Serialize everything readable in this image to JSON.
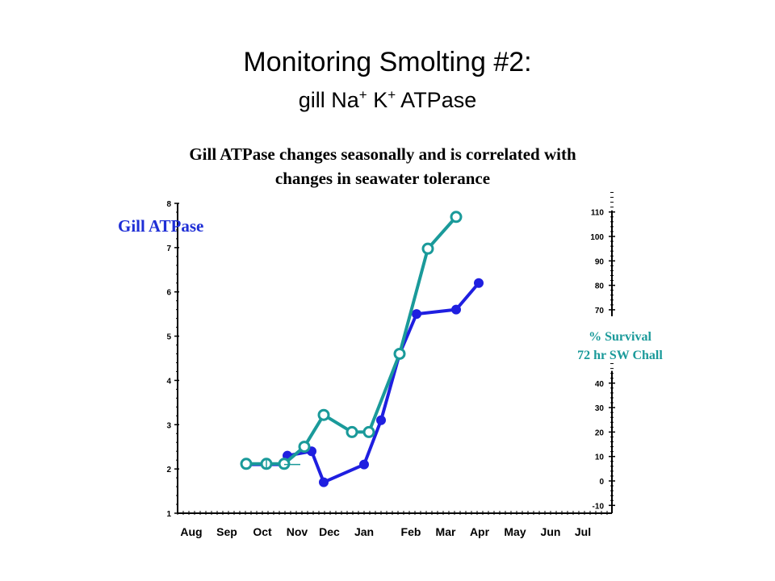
{
  "slide": {
    "title": "Monitoring Smolting #2:",
    "subtitle_prefix": "gill Na",
    "subtitle_sup1": "+",
    "subtitle_mid": " K",
    "subtitle_sup2": "+",
    "subtitle_suffix": " ATPase"
  },
  "chart_data": {
    "type": "line",
    "title": "Gill ATPase changes seasonally and is correlated with changes in seawater tolerance",
    "ylabel": "Gill ATPase",
    "y2label_line1": "% Survival",
    "y2label_line2": "72 hr SW Chall",
    "x_labels": [
      "Aug",
      "Sep",
      "Oct",
      "Nov",
      "Dec",
      "Jan",
      "Feb",
      "Mar",
      "Apr",
      "May",
      "Jun",
      "Jul"
    ],
    "ylim": [
      1,
      8
    ],
    "y_ticks": [
      1,
      2,
      3,
      4,
      5,
      6,
      7,
      8
    ],
    "y2_ticks_upper": [
      70,
      80,
      90,
      100,
      110
    ],
    "y2_ticks_lower": [
      -10,
      0,
      10,
      20,
      30,
      40
    ],
    "grid": false,
    "legend": "none",
    "colors": {
      "atpase": "#1f1fe0",
      "survival": "#1a9a9a",
      "left_label": "#1f2fd6"
    },
    "series": [
      {
        "key": "atpase",
        "axis": "left",
        "x": [
          "late Sep",
          "Oct",
          "mid Oct",
          "Nov",
          "mid Nov",
          "Dec",
          "Jan",
          "mid Jan",
          "late Jan",
          "early Feb",
          "Mar",
          "Apr"
        ],
        "values": [
          2.1,
          2.1,
          2.1,
          2.3,
          2.4,
          1.7,
          2.1,
          3.1,
          4.6,
          5.5,
          5.6,
          6.2
        ]
      },
      {
        "key": "survival",
        "axis": "right",
        "x": [
          "late Sep",
          "Oct",
          "mid Oct",
          "Nov",
          "Dec",
          "Dec-Jan",
          "Jan",
          "late Jan",
          "Feb",
          "Mar"
        ],
        "values": [
          7,
          7,
          7,
          14,
          27,
          20,
          20,
          52,
          95,
          108
        ]
      }
    ]
  }
}
